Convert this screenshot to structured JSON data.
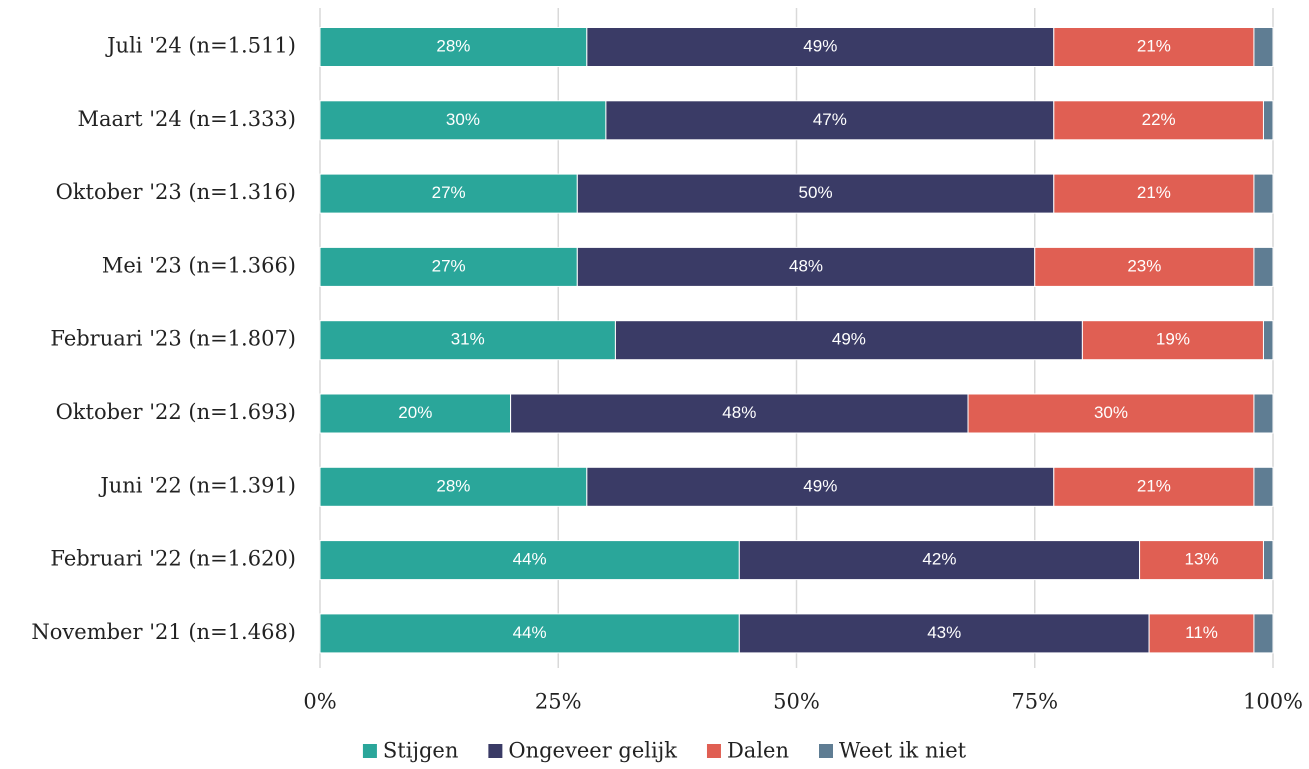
{
  "chart_data": {
    "type": "stacked-bar-horizontal",
    "categories": [
      "Juli '24 (n=1.511)",
      "Maart '24 (n=1.333)",
      "Oktober '23 (n=1.316)",
      "Mei '23 (n=1.366)",
      "Februari '23 (n=1.807)",
      "Oktober '22 (n=1.693)",
      "Juni '22 (n=1.391)",
      "Februari '22 (n=1.620)",
      "November '21 (n=1.468)"
    ],
    "series": [
      {
        "name": "Stijgen",
        "color": "#2aa69a",
        "values": [
          28,
          30,
          27,
          27,
          31,
          20,
          28,
          44,
          44
        ],
        "value_labels": [
          "28%",
          "30%",
          "27%",
          "27%",
          "31%",
          "20%",
          "28%",
          "44%",
          "44%"
        ]
      },
      {
        "name": "Ongeveer gelijk",
        "color": "#3a3b66",
        "values": [
          49,
          47,
          50,
          48,
          49,
          48,
          49,
          42,
          43
        ],
        "value_labels": [
          "49%",
          "47%",
          "50%",
          "48%",
          "49%",
          "48%",
          "49%",
          "42%",
          "43%"
        ]
      },
      {
        "name": "Dalen",
        "color": "#e05f53",
        "values": [
          21,
          22,
          21,
          23,
          19,
          30,
          21,
          13,
          11
        ],
        "value_labels": [
          "21%",
          "22%",
          "21%",
          "23%",
          "19%",
          "30%",
          "21%",
          "13%",
          "11%"
        ]
      },
      {
        "name": "Weet ik niet",
        "color": "#5f7d93",
        "values": [
          2,
          1,
          2,
          2,
          1,
          2,
          2,
          1,
          2
        ]
      }
    ],
    "xlim": [
      0,
      100
    ],
    "xticks": [
      {
        "value": 0,
        "label": "0%"
      },
      {
        "value": 25,
        "label": "25%"
      },
      {
        "value": 50,
        "label": "50%"
      },
      {
        "value": 75,
        "label": "75%"
      },
      {
        "value": 100,
        "label": "100%"
      }
    ],
    "grid": true,
    "legend": "bottom"
  }
}
